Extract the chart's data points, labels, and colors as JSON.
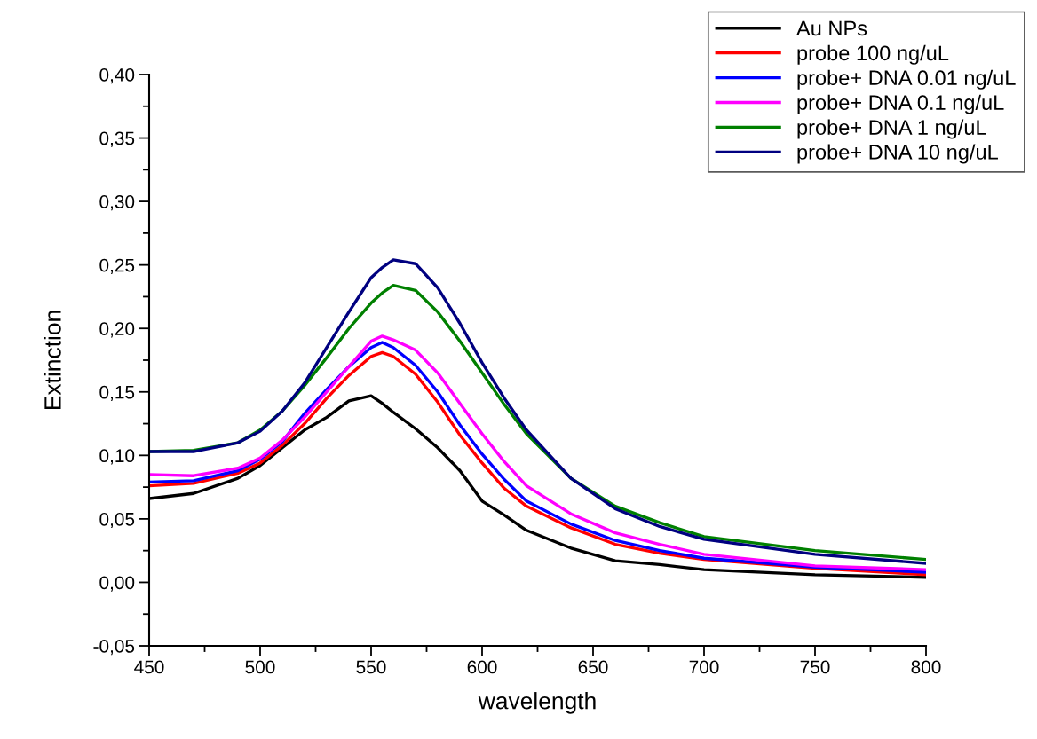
{
  "chart_data": {
    "type": "line",
    "xlabel": "wavelength",
    "ylabel": "Extinction",
    "x": [
      450,
      470,
      490,
      500,
      510,
      520,
      530,
      540,
      550,
      555,
      560,
      570,
      580,
      590,
      600,
      610,
      620,
      640,
      660,
      680,
      700,
      750,
      800
    ],
    "series": [
      {
        "name": "Au NPs",
        "color": "#000000",
        "values": [
          0.066,
          0.07,
          0.082,
          0.092,
          0.106,
          0.12,
          0.13,
          0.143,
          0.147,
          0.141,
          0.134,
          0.121,
          0.106,
          0.088,
          0.064,
          0.053,
          0.041,
          0.027,
          0.017,
          0.014,
          0.01,
          0.006,
          0.004
        ]
      },
      {
        "name": "probe 100 ng/uL",
        "color": "#ff0000",
        "values": [
          0.076,
          0.078,
          0.086,
          0.094,
          0.108,
          0.125,
          0.145,
          0.163,
          0.178,
          0.181,
          0.178,
          0.164,
          0.142,
          0.116,
          0.094,
          0.074,
          0.06,
          0.043,
          0.03,
          0.023,
          0.018,
          0.011,
          0.006
        ]
      },
      {
        "name": "probe+ DNA 0.01 ng/uL",
        "color": "#0000ff",
        "values": [
          0.079,
          0.08,
          0.088,
          0.097,
          0.111,
          0.133,
          0.152,
          0.17,
          0.185,
          0.189,
          0.185,
          0.171,
          0.15,
          0.124,
          0.101,
          0.081,
          0.064,
          0.046,
          0.033,
          0.025,
          0.019,
          0.012,
          0.008
        ]
      },
      {
        "name": "probe+ DNA 0.1 ng/uL",
        "color": "#ff00ff",
        "values": [
          0.085,
          0.084,
          0.09,
          0.098,
          0.112,
          0.13,
          0.15,
          0.17,
          0.19,
          0.194,
          0.191,
          0.183,
          0.165,
          0.141,
          0.117,
          0.095,
          0.076,
          0.054,
          0.039,
          0.03,
          0.022,
          0.013,
          0.01
        ]
      },
      {
        "name": "probe+ DNA 1 ng/uL",
        "color": "#008000",
        "values": [
          0.103,
          0.104,
          0.11,
          0.12,
          0.135,
          0.155,
          0.177,
          0.2,
          0.22,
          0.228,
          0.234,
          0.23,
          0.213,
          0.19,
          0.165,
          0.14,
          0.117,
          0.082,
          0.06,
          0.047,
          0.036,
          0.025,
          0.018
        ]
      },
      {
        "name": "probe+ DNA 10 ng/uL",
        "color": "#000080",
        "values": [
          0.103,
          0.103,
          0.11,
          0.119,
          0.135,
          0.157,
          0.185,
          0.213,
          0.24,
          0.248,
          0.254,
          0.251,
          0.232,
          0.204,
          0.173,
          0.145,
          0.12,
          0.082,
          0.058,
          0.044,
          0.034,
          0.022,
          0.015
        ]
      }
    ],
    "xlim": [
      450,
      800
    ],
    "xticks": [
      450,
      {
        "value": 475,
        "label": null
      },
      500,
      {
        "value": 525,
        "label": null
      },
      550,
      {
        "value": 575,
        "label": null
      },
      600,
      {
        "value": 625,
        "label": null
      },
      650,
      {
        "value": 675,
        "label": null
      },
      700,
      {
        "value": 725,
        "label": null
      },
      750,
      {
        "value": 775,
        "label": null
      },
      800
    ],
    "ylim": [
      -0.05,
      0.4
    ],
    "yticks": [
      {
        "value": -0.05,
        "label": "-0,05"
      },
      {
        "value": -0.025,
        "label": null
      },
      {
        "value": 0.0,
        "label": "0,00"
      },
      {
        "value": 0.025,
        "label": null
      },
      {
        "value": 0.05,
        "label": "0,05"
      },
      {
        "value": 0.075,
        "label": null
      },
      {
        "value": 0.1,
        "label": "0,10"
      },
      {
        "value": 0.125,
        "label": null
      },
      {
        "value": 0.15,
        "label": "0,15"
      },
      {
        "value": 0.175,
        "label": null
      },
      {
        "value": 0.2,
        "label": "0,20"
      },
      {
        "value": 0.225,
        "label": null
      },
      {
        "value": 0.25,
        "label": "0,25"
      },
      {
        "value": 0.275,
        "label": null
      },
      {
        "value": 0.3,
        "label": "0,30"
      },
      {
        "value": 0.325,
        "label": null
      },
      {
        "value": 0.35,
        "label": "0,35"
      },
      {
        "value": 0.375,
        "label": null
      },
      {
        "value": 0.4,
        "label": "0,40"
      }
    ],
    "legend": "top right",
    "grid": false,
    "marker": "none",
    "line_style": "solid"
  }
}
